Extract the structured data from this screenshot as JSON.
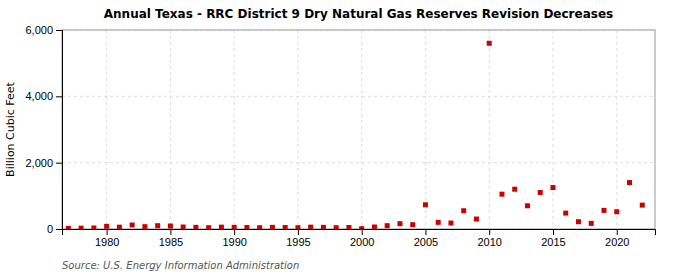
{
  "chart_data": {
    "type": "scatter",
    "title": "Annual Texas - RRC District 9 Dry Natural Gas Reserves Revision Decreases",
    "ylabel": "Billion Cubic Feet",
    "annotation": "Source: U.S. Energy Information Administration",
    "x": [
      1977,
      1978,
      1979,
      1980,
      1981,
      1982,
      1983,
      1984,
      1985,
      1986,
      1987,
      1988,
      1989,
      1990,
      1991,
      1992,
      1993,
      1994,
      1995,
      1996,
      1997,
      1998,
      1999,
      2000,
      2001,
      2002,
      2003,
      2004,
      2005,
      2006,
      2007,
      2008,
      2009,
      2010,
      2011,
      2012,
      2013,
      2014,
      2015,
      2016,
      2017,
      2018,
      2019,
      2020,
      2021,
      2022
    ],
    "values": [
      18,
      25,
      30,
      80,
      55,
      120,
      70,
      100,
      90,
      60,
      50,
      40,
      55,
      50,
      45,
      40,
      50,
      45,
      40,
      55,
      50,
      40,
      45,
      10,
      60,
      100,
      160,
      130,
      730,
      200,
      180,
      550,
      300,
      5600,
      1050,
      1200,
      700,
      1100,
      1250,
      480,
      220,
      170,
      560,
      520,
      1400,
      720
    ],
    "color": "#cc0000",
    "marker": "square",
    "xlim": [
      1976.5,
      2023
    ],
    "xticks": [
      1980,
      1985,
      1990,
      1995,
      2000,
      2005,
      2010,
      2015,
      2020
    ],
    "ylim": [
      0,
      6000
    ],
    "yticks": [
      0,
      {
        "value": 2000,
        "label": "2,000"
      },
      {
        "value": 4000,
        "label": "4,000"
      },
      {
        "value": 6000,
        "label": "6,000"
      }
    ],
    "grid": true
  }
}
